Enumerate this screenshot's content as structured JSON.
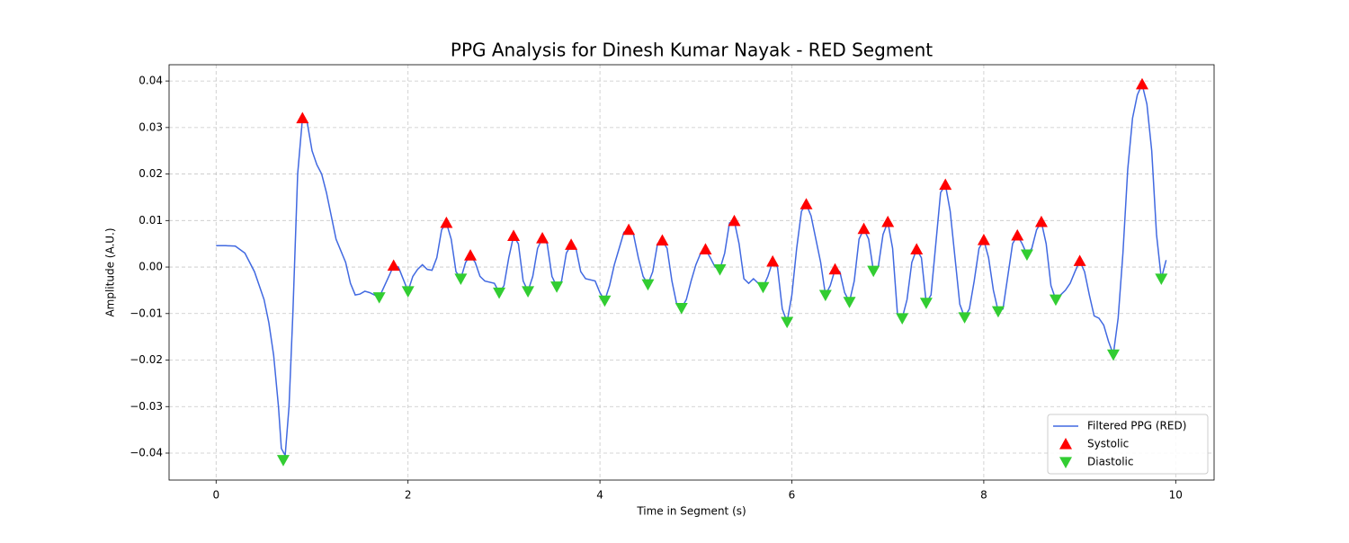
{
  "chart_data": {
    "type": "line",
    "title": "PPG Analysis for Dinesh Kumar Nayak - RED Segment",
    "xlabel": "Time in Segment (s)",
    "ylabel": "Amplitude (A.U.)",
    "xlim": [
      -0.49,
      10.4
    ],
    "ylim": [
      -0.0458,
      0.0435
    ],
    "xticks": [
      0,
      2,
      4,
      6,
      8,
      10
    ],
    "yticks": [
      {
        "value": -0.04,
        "label": "−0.04"
      },
      {
        "value": -0.03,
        "label": "−0.03"
      },
      {
        "value": -0.02,
        "label": "−0.02"
      },
      {
        "value": -0.01,
        "label": "−0.01"
      },
      {
        "value": 0,
        "label": "0.00"
      },
      {
        "value": 0.01,
        "label": "0.01"
      },
      {
        "value": 0.02,
        "label": "0.02"
      },
      {
        "value": 0.03,
        "label": "0.03"
      },
      {
        "value": 0.04,
        "label": "0.04"
      }
    ],
    "grid": true,
    "legend": "lower right",
    "series": [
      {
        "name": "Filtered PPG (RED)",
        "type": "line",
        "color": "#4169e1",
        "x": [
          0,
          0.1,
          0.2,
          0.3,
          0.4,
          0.5,
          0.55,
          0.6,
          0.65,
          0.68,
          0.72,
          0.76,
          0.8,
          0.85,
          0.9,
          0.95,
          1.0,
          1.05,
          1.1,
          1.15,
          1.2,
          1.25,
          1.3,
          1.35,
          1.4,
          1.45,
          1.5,
          1.55,
          1.6,
          1.7,
          1.8,
          1.85,
          1.9,
          2.0,
          2.05,
          2.1,
          2.15,
          2.2,
          2.25,
          2.3,
          2.35,
          2.4,
          2.45,
          2.5,
          2.55,
          2.6,
          2.65,
          2.7,
          2.75,
          2.8,
          2.9,
          2.95,
          3.0,
          3.05,
          3.1,
          3.15,
          3.2,
          3.25,
          3.3,
          3.35,
          3.4,
          3.45,
          3.5,
          3.55,
          3.6,
          3.65,
          3.7,
          3.75,
          3.8,
          3.85,
          3.95,
          4.0,
          4.05,
          4.1,
          4.15,
          4.2,
          4.25,
          4.3,
          4.35,
          4.4,
          4.45,
          4.5,
          4.55,
          4.6,
          4.65,
          4.7,
          4.75,
          4.8,
          4.85,
          4.9,
          4.95,
          5.0,
          5.05,
          5.1,
          5.15,
          5.2,
          5.25,
          5.3,
          5.35,
          5.4,
          5.45,
          5.5,
          5.55,
          5.6,
          5.65,
          5.7,
          5.75,
          5.8,
          5.85,
          5.9,
          5.95,
          6.0,
          6.05,
          6.1,
          6.15,
          6.2,
          6.3,
          6.35,
          6.4,
          6.45,
          6.5,
          6.55,
          6.6,
          6.65,
          6.7,
          6.75,
          6.8,
          6.85,
          6.9,
          6.95,
          7.0,
          7.05,
          7.1,
          7.15,
          7.2,
          7.25,
          7.3,
          7.35,
          7.4,
          7.45,
          7.5,
          7.55,
          7.6,
          7.65,
          7.7,
          7.75,
          7.8,
          7.85,
          7.9,
          7.95,
          8.0,
          8.05,
          8.1,
          8.15,
          8.2,
          8.25,
          8.3,
          8.35,
          8.4,
          8.45,
          8.5,
          8.55,
          8.6,
          8.65,
          8.7,
          8.75,
          8.8,
          8.85,
          8.9,
          8.95,
          9.0,
          9.05,
          9.1,
          9.15,
          9.2,
          9.25,
          9.3,
          9.35,
          9.4,
          9.45,
          9.5,
          9.55,
          9.6,
          9.65,
          9.7,
          9.75,
          9.8,
          9.85,
          9.9
        ],
        "values": [
          0.0046,
          0.0046,
          0.0045,
          0.003,
          -0.001,
          -0.007,
          -0.012,
          -0.019,
          -0.03,
          -0.039,
          -0.0405,
          -0.03,
          -0.01,
          0.02,
          0.032,
          0.031,
          0.025,
          0.022,
          0.02,
          0.016,
          0.011,
          0.006,
          0.0035,
          0.001,
          -0.0035,
          -0.006,
          -0.0058,
          -0.0052,
          -0.0055,
          -0.0065,
          -0.002,
          0.0003,
          0.0,
          -0.0052,
          -0.002,
          -0.0005,
          0.0005,
          -0.0005,
          -0.0007,
          0.002,
          0.008,
          0.0095,
          0.006,
          -0.001,
          -0.0025,
          0.001,
          0.0025,
          0.001,
          -0.002,
          -0.003,
          -0.0035,
          -0.0055,
          -0.004,
          0.002,
          0.0067,
          0.005,
          -0.003,
          -0.0052,
          -0.002,
          0.004,
          0.0062,
          0.005,
          -0.002,
          -0.0042,
          -0.003,
          0.003,
          0.0048,
          0.004,
          -0.001,
          -0.0025,
          -0.003,
          -0.0055,
          -0.0072,
          -0.004,
          0.0005,
          0.004,
          0.0075,
          0.008,
          0.007,
          0.002,
          -0.002,
          -0.0037,
          -0.001,
          0.005,
          0.0057,
          0.004,
          -0.003,
          -0.008,
          -0.0088,
          -0.007,
          -0.003,
          0.0005,
          0.003,
          0.0038,
          0.002,
          0.0,
          -0.0005,
          0.003,
          0.0095,
          0.0099,
          0.005,
          -0.0025,
          -0.0035,
          -0.0025,
          -0.0035,
          -0.0043,
          -0.002,
          0.0012,
          0.0,
          -0.009,
          -0.0118,
          -0.006,
          0.004,
          0.012,
          0.0135,
          0.011,
          0.001,
          -0.006,
          -0.004,
          -0.0005,
          -0.001,
          -0.0055,
          -0.0075,
          -0.003,
          0.006,
          0.0082,
          0.006,
          -0.0008,
          0.0,
          0.007,
          0.0097,
          0.004,
          -0.01,
          -0.011,
          -0.007,
          0.001,
          0.0038,
          0.002,
          -0.0077,
          -0.006,
          0.005,
          0.016,
          0.0177,
          0.012,
          0.002,
          -0.008,
          -0.0108,
          -0.009,
          -0.003,
          0.004,
          0.0058,
          0.002,
          -0.005,
          -0.0095,
          -0.009,
          -0.002,
          0.005,
          0.0068,
          0.005,
          0.0027,
          0.004,
          0.008,
          0.0097,
          0.005,
          -0.004,
          -0.007,
          -0.006,
          -0.005,
          -0.0035,
          -0.001,
          0.0013,
          -0.001,
          -0.006,
          -0.0105,
          -0.011,
          -0.0125,
          -0.016,
          -0.0188,
          -0.011,
          0.003,
          0.021,
          0.032,
          0.037,
          0.0393,
          0.035,
          0.025,
          0.007,
          -0.0025,
          0.0015
        ]
      },
      {
        "name": "Systolic",
        "type": "scatter",
        "marker": "up",
        "color": "#ff0000",
        "x": [
          0.9,
          1.85,
          2.4,
          2.65,
          3.1,
          3.4,
          3.7,
          4.3,
          4.65,
          5.1,
          5.4,
          5.8,
          6.15,
          6.45,
          6.75,
          7.0,
          7.3,
          7.6,
          8.0,
          8.35,
          8.6,
          9.0,
          9.65
        ],
        "values": [
          0.032,
          0.0003,
          0.0095,
          0.0025,
          0.0067,
          0.0062,
          0.0048,
          0.008,
          0.0057,
          0.0038,
          0.0099,
          0.0012,
          0.0135,
          -0.0005,
          0.0082,
          0.0097,
          0.0038,
          0.0177,
          0.0058,
          0.0068,
          0.0097,
          0.0013,
          0.0393
        ]
      },
      {
        "name": "Diastolic",
        "type": "scatter",
        "marker": "down",
        "color": "#32cd32",
        "x": [
          0.7,
          1.7,
          2.0,
          2.55,
          2.95,
          3.25,
          3.55,
          4.05,
          4.5,
          4.85,
          5.25,
          5.7,
          5.95,
          6.35,
          6.6,
          6.85,
          7.15,
          7.4,
          7.8,
          8.15,
          8.45,
          8.75,
          9.35,
          9.85
        ],
        "values": [
          -0.0415,
          -0.0065,
          -0.0052,
          -0.0025,
          -0.0055,
          -0.0052,
          -0.0042,
          -0.0072,
          -0.0037,
          -0.0088,
          -0.0005,
          -0.0043,
          -0.0118,
          -0.006,
          -0.0075,
          -0.0008,
          -0.011,
          -0.0077,
          -0.0108,
          -0.0095,
          0.0027,
          -0.007,
          -0.0188,
          -0.0025
        ]
      }
    ]
  }
}
